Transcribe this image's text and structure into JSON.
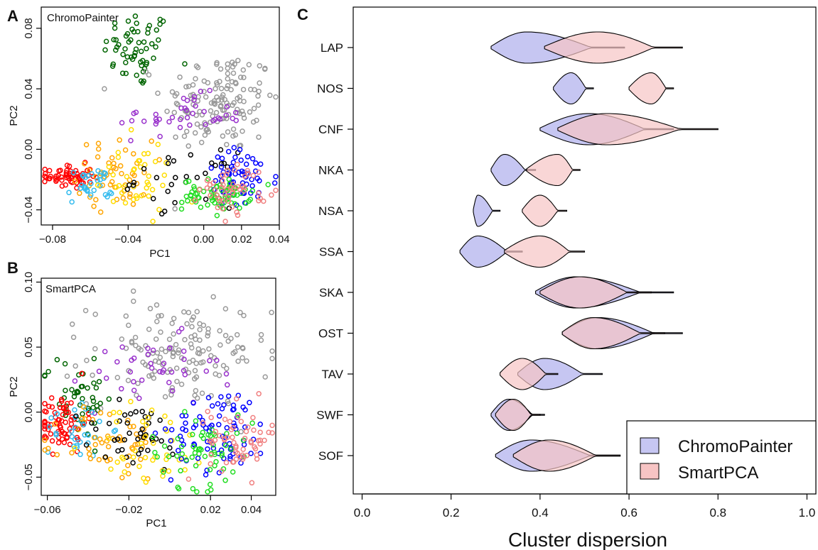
{
  "chart_data": [
    {
      "panel": "A",
      "type": "scatter",
      "title": "ChromoPainter",
      "xlabel": "PC1",
      "ylabel": "PC2",
      "xlim": [
        -0.086,
        0.04
      ],
      "ylim": [
        -0.05,
        0.094
      ],
      "xticks": [
        "-0.08",
        "-0.04",
        "0.00",
        "0.02",
        "0.04"
      ],
      "xtick_values": [
        -0.08,
        -0.04,
        0.0,
        0.02,
        0.04
      ],
      "yticks": [
        "-0.04",
        "0.00",
        "0.04",
        "0.08"
      ],
      "ytick_values": [
        -0.04,
        0.0,
        0.04,
        0.08
      ],
      "clusters": [
        {
          "color": "#006400",
          "n": 60,
          "cx": -0.035,
          "cy": 0.066,
          "sx": 0.009,
          "sy": 0.013
        },
        {
          "color": "#999999",
          "n": 140,
          "cx": 0.008,
          "cy": 0.032,
          "sx": 0.015,
          "sy": 0.017
        },
        {
          "color": "#9932CC",
          "n": 40,
          "cx": -0.012,
          "cy": 0.022,
          "sx": 0.017,
          "sy": 0.007
        },
        {
          "color": "#FF0000",
          "n": 60,
          "cx": -0.071,
          "cy": -0.018,
          "sx": 0.006,
          "sy": 0.004
        },
        {
          "color": "#FFA500",
          "n": 50,
          "cx": -0.047,
          "cy": -0.016,
          "sx": 0.01,
          "sy": 0.011
        },
        {
          "color": "#33BBEE",
          "n": 30,
          "cx": -0.06,
          "cy": -0.024,
          "sx": 0.006,
          "sy": 0.006
        },
        {
          "color": "#FFDD00",
          "n": 40,
          "cx": -0.037,
          "cy": -0.02,
          "sx": 0.011,
          "sy": 0.013
        },
        {
          "color": "#000000",
          "n": 30,
          "cx": -0.01,
          "cy": -0.02,
          "sx": 0.013,
          "sy": 0.009
        },
        {
          "color": "#0000FF",
          "n": 60,
          "cx": 0.02,
          "cy": -0.02,
          "sx": 0.01,
          "sy": 0.01
        },
        {
          "color": "#22DD22",
          "n": 70,
          "cx": 0.007,
          "cy": -0.03,
          "sx": 0.009,
          "sy": 0.005
        },
        {
          "color": "#F08080",
          "n": 50,
          "cx": 0.016,
          "cy": -0.026,
          "sx": 0.009,
          "sy": 0.008
        }
      ]
    },
    {
      "panel": "B",
      "type": "scatter",
      "title": "SmartPCA",
      "xlabel": "PC1",
      "ylabel": "PC2",
      "xlim": [
        -0.063,
        0.052
      ],
      "ylim": [
        -0.064,
        0.103
      ],
      "xticks": [
        "-0.06",
        "-0.02",
        "0.02",
        "0.04"
      ],
      "xtick_values": [
        -0.06,
        -0.02,
        0.02,
        0.04
      ],
      "yticks": [
        "-0.05",
        "0.00",
        "0.05",
        "0.10"
      ],
      "ytick_values": [
        -0.05,
        0.0,
        0.05,
        0.1
      ],
      "clusters": [
        {
          "color": "#999999",
          "n": 150,
          "cx": 0.005,
          "cy": 0.045,
          "sx": 0.022,
          "sy": 0.02
        },
        {
          "color": "#9932CC",
          "n": 40,
          "cx": -0.01,
          "cy": 0.03,
          "sx": 0.017,
          "sy": 0.014
        },
        {
          "color": "#006400",
          "n": 45,
          "cx": -0.045,
          "cy": 0.012,
          "sx": 0.009,
          "sy": 0.016
        },
        {
          "color": "#FF0000",
          "n": 70,
          "cx": -0.053,
          "cy": -0.008,
          "sx": 0.006,
          "sy": 0.011
        },
        {
          "color": "#33BBEE",
          "n": 30,
          "cx": -0.045,
          "cy": -0.012,
          "sx": 0.008,
          "sy": 0.012
        },
        {
          "color": "#FFA500",
          "n": 50,
          "cx": -0.028,
          "cy": -0.025,
          "sx": 0.012,
          "sy": 0.014
        },
        {
          "color": "#000000",
          "n": 40,
          "cx": -0.018,
          "cy": -0.02,
          "sx": 0.014,
          "sy": 0.015
        },
        {
          "color": "#FFDD00",
          "n": 40,
          "cx": -0.01,
          "cy": -0.025,
          "sx": 0.015,
          "sy": 0.016
        },
        {
          "color": "#0000FF",
          "n": 80,
          "cx": 0.025,
          "cy": -0.014,
          "sx": 0.012,
          "sy": 0.016
        },
        {
          "color": "#22DD22",
          "n": 60,
          "cx": 0.015,
          "cy": -0.03,
          "sx": 0.013,
          "sy": 0.014
        },
        {
          "color": "#F08080",
          "n": 60,
          "cx": 0.035,
          "cy": -0.022,
          "sx": 0.008,
          "sy": 0.014
        }
      ]
    },
    {
      "panel": "C",
      "type": "violin",
      "xlabel": "Cluster dispersion",
      "xlim": [
        -0.02,
        1.02
      ],
      "xticks": [
        "0.0",
        "0.2",
        "0.4",
        "0.6",
        "0.8",
        "1.0"
      ],
      "xtick_values": [
        0.0,
        0.2,
        0.4,
        0.6,
        0.8,
        1.0
      ],
      "categories": [
        "LAP",
        "NOS",
        "CNF",
        "NKA",
        "NSA",
        "SSA",
        "SKA",
        "OST",
        "TAV",
        "SWF",
        "SOF"
      ],
      "legend": {
        "position": "bottom-right",
        "entries": [
          {
            "label": "ChromoPainter",
            "color": "#c6c6f2"
          },
          {
            "label": "SmartPCA",
            "color": "#f7c4c4"
          }
        ]
      },
      "series": [
        {
          "name": "ChromoPainter",
          "color": "#c6c6f2",
          "violins": [
            {
              "min": 0.29,
              "mode": 0.37,
              "max": 0.59
            },
            {
              "min": 0.43,
              "mode": 0.47,
              "max": 0.52
            },
            {
              "min": 0.4,
              "mode": 0.51,
              "max": 0.7
            },
            {
              "min": 0.29,
              "mode": 0.32,
              "max": 0.39
            },
            {
              "min": 0.25,
              "mode": 0.26,
              "max": 0.31
            },
            {
              "min": 0.22,
              "mode": 0.26,
              "max": 0.36
            },
            {
              "min": 0.39,
              "mode": 0.48,
              "max": 0.7
            },
            {
              "min": 0.45,
              "mode": 0.53,
              "max": 0.72
            },
            {
              "min": 0.35,
              "mode": 0.41,
              "max": 0.54
            },
            {
              "min": 0.29,
              "mode": 0.33,
              "max": 0.41
            },
            {
              "min": 0.3,
              "mode": 0.38,
              "max": 0.58
            }
          ]
        },
        {
          "name": "SmartPCA",
          "color": "#f7c4c4",
          "violins": [
            {
              "min": 0.41,
              "mode": 0.53,
              "max": 0.72
            },
            {
              "min": 0.6,
              "mode": 0.65,
              "max": 0.7
            },
            {
              "min": 0.44,
              "mode": 0.55,
              "max": 0.8
            },
            {
              "min": 0.37,
              "mode": 0.44,
              "max": 0.49
            },
            {
              "min": 0.36,
              "mode": 0.4,
              "max": 0.46
            },
            {
              "min": 0.32,
              "mode": 0.4,
              "max": 0.5
            },
            {
              "min": 0.4,
              "mode": 0.49,
              "max": 0.65
            },
            {
              "min": 0.45,
              "mode": 0.52,
              "max": 0.68
            },
            {
              "min": 0.31,
              "mode": 0.36,
              "max": 0.44
            },
            {
              "min": 0.3,
              "mode": 0.34,
              "max": 0.4
            },
            {
              "min": 0.34,
              "mode": 0.42,
              "max": 0.58
            }
          ]
        }
      ]
    }
  ]
}
